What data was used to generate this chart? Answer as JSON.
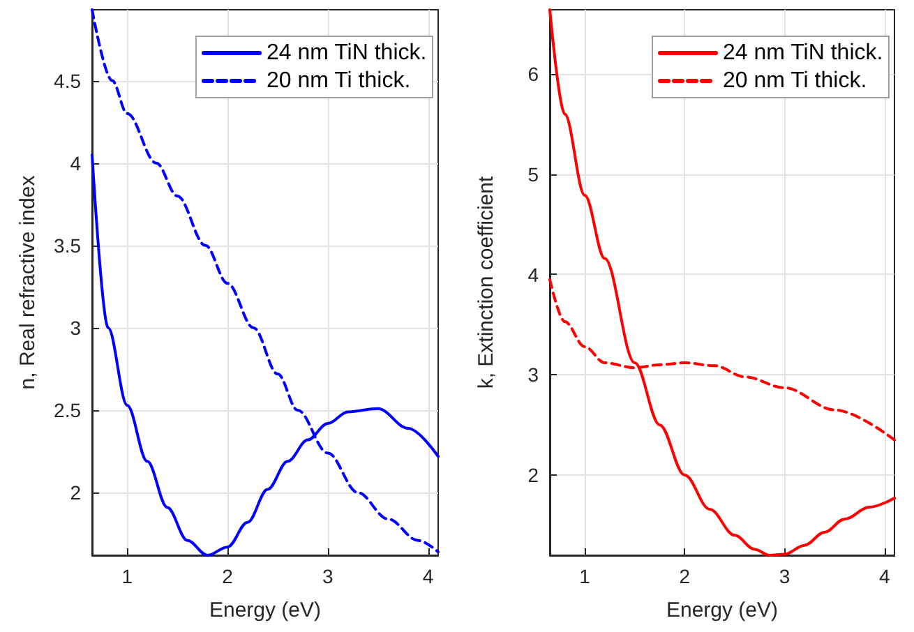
{
  "chart_data": [
    {
      "type": "line",
      "xlabel": "Energy (eV)",
      "ylabel": "n, Real refractive index",
      "xlim": [
        0.65,
        4.1
      ],
      "ylim": [
        1.62,
        4.93
      ],
      "xticks": [
        1,
        2,
        3,
        4
      ],
      "yticks": [
        2,
        2.5,
        3,
        3.5,
        4,
        4.5
      ],
      "grid": true,
      "legend": "top right",
      "marker": "none",
      "series": [
        {
          "name": "24 nm TiN thick.",
          "color": "#0000ff",
          "line_style": "solid",
          "x": [
            0.65,
            0.81,
            1.0,
            1.2,
            1.4,
            1.6,
            1.8,
            2.0,
            2.2,
            2.4,
            2.6,
            2.8,
            3.0,
            3.2,
            3.5,
            3.8,
            4.1
          ],
          "values": [
            4.05,
            3.0,
            2.53,
            2.19,
            1.91,
            1.71,
            1.62,
            1.67,
            1.82,
            2.02,
            2.19,
            2.32,
            2.42,
            2.49,
            2.51,
            2.39,
            2.22
          ]
        },
        {
          "name": "20 nm Ti thick.",
          "color": "#0000ff",
          "line_style": "dashed",
          "x": [
            0.65,
            0.85,
            1.0,
            1.29,
            1.5,
            1.78,
            2.0,
            2.26,
            2.5,
            2.7,
            3.0,
            3.3,
            3.6,
            3.9,
            4.1
          ],
          "values": [
            4.93,
            4.5,
            4.3,
            4.0,
            3.8,
            3.5,
            3.27,
            3.0,
            2.72,
            2.5,
            2.24,
            2.0,
            1.84,
            1.71,
            1.64
          ]
        }
      ]
    },
    {
      "type": "line",
      "xlabel": "Energy (eV)",
      "ylabel": "k, Extinction coefficient",
      "xlim": [
        0.65,
        4.1
      ],
      "ylim": [
        1.2,
        6.64
      ],
      "xticks": [
        1,
        2,
        3,
        4
      ],
      "yticks": [
        2,
        3,
        4,
        5,
        6
      ],
      "grid": true,
      "legend": "top right",
      "marker": "none",
      "series": [
        {
          "name": "24 nm TiN thick.",
          "color": "#ff0000",
          "line_style": "solid",
          "x": [
            0.65,
            0.8,
            1.0,
            1.2,
            1.5,
            1.75,
            2.0,
            2.25,
            2.5,
            2.7,
            2.85,
            3.0,
            3.2,
            3.4,
            3.6,
            3.85,
            4.1
          ],
          "values": [
            6.64,
            5.6,
            4.79,
            4.16,
            3.12,
            2.5,
            2.0,
            1.66,
            1.4,
            1.26,
            1.2,
            1.21,
            1.3,
            1.43,
            1.56,
            1.68,
            1.77
          ]
        },
        {
          "name": "20 nm Ti thick.",
          "color": "#ff0000",
          "line_style": "dashed",
          "x": [
            0.65,
            0.8,
            1.0,
            1.2,
            1.5,
            1.75,
            2.0,
            2.3,
            2.6,
            3.0,
            3.5,
            4.1
          ],
          "values": [
            3.95,
            3.53,
            3.28,
            3.12,
            3.07,
            3.1,
            3.12,
            3.09,
            2.98,
            2.87,
            2.65,
            2.35
          ]
        }
      ]
    }
  ]
}
